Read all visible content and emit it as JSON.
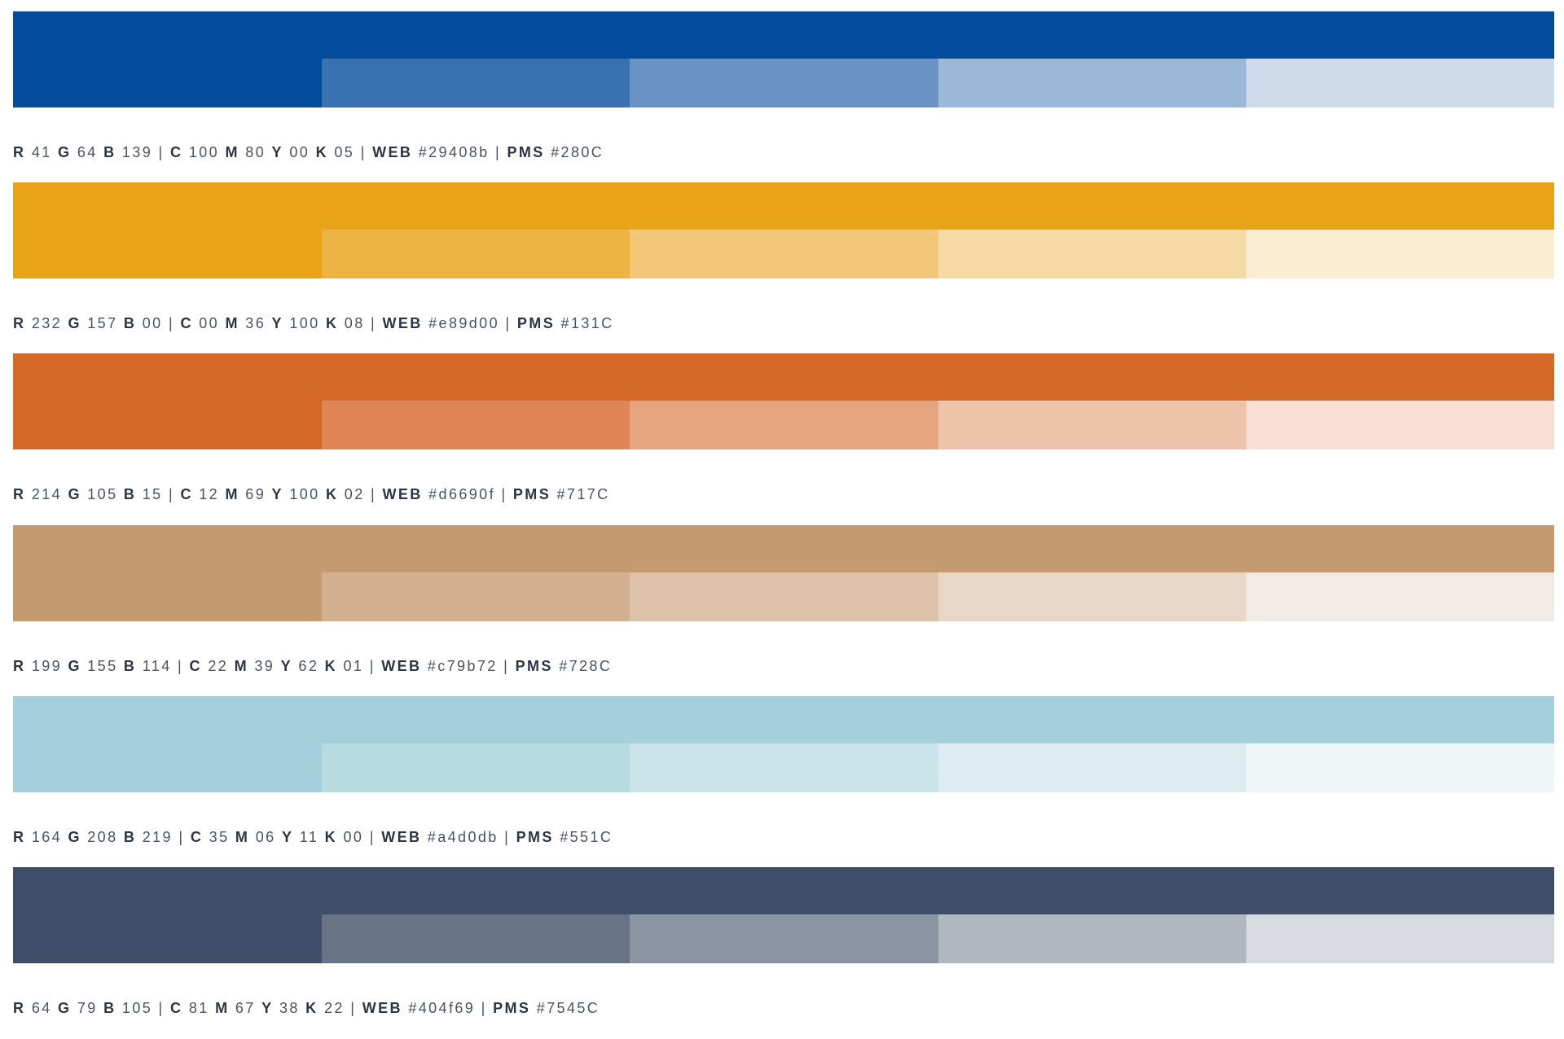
{
  "palettes": [
    {
      "base": "#034b9b",
      "tints": [
        "#3a71b2",
        "#6993c5",
        "#9bb8d8",
        "#cedbeb"
      ],
      "rgb": {
        "r": "41",
        "g": "64",
        "b": "139"
      },
      "cmyk": {
        "c": "100",
        "m": "80",
        "y": "00",
        "k": "05"
      },
      "web": "#29408b",
      "pms": "#280C"
    },
    {
      "base": "#e8a316",
      "tints": [
        "#edb445",
        "#f2c778",
        "#f6daa5",
        "#fbedd2"
      ],
      "rgb": {
        "r": "232",
        "g": "157",
        "b": "00"
      },
      "cmyk": {
        "c": "00",
        "m": "36",
        "y": "100",
        "k": "08"
      },
      "web": "#e89d00",
      "pms": "#131C"
    },
    {
      "base": "#d56927",
      "tints": [
        "#df8656",
        "#e6a57f",
        "#edc3a9",
        "#f7dfd4"
      ],
      "rgb": {
        "r": "214",
        "g": "105",
        "b": "15"
      },
      "cmyk": {
        "c": "12",
        "m": "69",
        "y": "100",
        "k": "02"
      },
      "web": "#d6690f",
      "pms": "#717C"
    },
    {
      "base": "#c59a71",
      "tints": [
        "#d3b090",
        "#ddc2a9",
        "#e8d7c6",
        "#f2eae4"
      ],
      "rgb": {
        "r": "199",
        "g": "155",
        "b": "114"
      },
      "cmyk": {
        "c": "22",
        "m": "39",
        "y": "62",
        "k": "01"
      },
      "web": "#c79b72",
      "pms": "#728C"
    },
    {
      "base": "#a4cfdc",
      "tints": [
        "#b8dbe2",
        "#cae3e9",
        "#ddecf1",
        "#edf5f7"
      ],
      "rgb": {
        "r": "164",
        "g": "208",
        "b": "219"
      },
      "cmyk": {
        "c": "35",
        "m": "06",
        "y": "11",
        "k": "00"
      },
      "web": "#a4d0db",
      "pms": "#551C"
    },
    {
      "base": "#404f69",
      "tints": [
        "#687386",
        "#8a94a3",
        "#b0b7c1",
        "#d7dade"
      ],
      "rgb": {
        "r": "64",
        "g": "79",
        "b": "105"
      },
      "cmyk": {
        "c": "81",
        "m": "67",
        "y": "38",
        "k": "22"
      },
      "web": "#404f69",
      "pms": "#7545C"
    }
  ],
  "labels": {
    "r": "R",
    "g": "G",
    "b": "B",
    "c": "C",
    "m": "M",
    "y": "Y",
    "k": "K",
    "web": "WEB",
    "pms": "PMS",
    "separator": "|"
  }
}
